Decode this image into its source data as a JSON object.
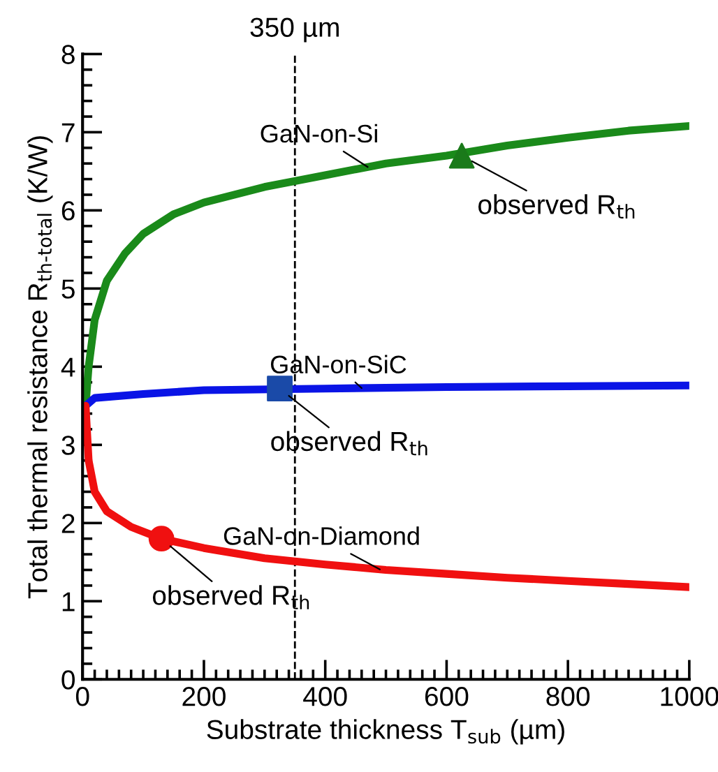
{
  "chart_data": {
    "type": "line",
    "xlabel": "Substrate thickness T$_{sub}$ (µm)",
    "ylabel": "Total thermal resistance R$_{th-total}$ (K/W)",
    "xlim": [
      0,
      1000
    ],
    "xticks": [
      0,
      200,
      400,
      600,
      800,
      1000
    ],
    "ylim": [
      0,
      8
    ],
    "yticks": [
      0,
      1,
      2,
      3,
      4,
      5,
      6,
      7,
      8
    ],
    "grid": false,
    "legend": false,
    "marker": "none",
    "line_style": "solid",
    "series": [
      {
        "name": "GaN-on-Si",
        "color": "#1a8a1a",
        "x": [
          5,
          10,
          20,
          40,
          70,
          100,
          150,
          200,
          300,
          400,
          500,
          600,
          700,
          800,
          900,
          1000
        ],
        "values": [
          3.5,
          4.0,
          4.6,
          5.1,
          5.45,
          5.7,
          5.95,
          6.1,
          6.3,
          6.45,
          6.6,
          6.7,
          6.83,
          6.93,
          7.02,
          7.08
        ]
      },
      {
        "name": "GaN-on-SiC",
        "color": "#0a14e6",
        "x": [
          5,
          20,
          100,
          200,
          400,
          600,
          800,
          1000
        ],
        "values": [
          3.5,
          3.6,
          3.65,
          3.7,
          3.72,
          3.74,
          3.75,
          3.76
        ]
      },
      {
        "name": "GaN-on-Diamond",
        "color": "#f01010",
        "x": [
          5,
          10,
          20,
          40,
          80,
          130,
          200,
          300,
          400,
          500,
          600,
          700,
          800,
          900,
          1000
        ],
        "values": [
          3.5,
          2.8,
          2.4,
          2.15,
          1.95,
          1.8,
          1.68,
          1.55,
          1.47,
          1.4,
          1.35,
          1.3,
          1.26,
          1.22,
          1.18
        ]
      },
      {
        "type": "scatter",
        "marker": "triangle",
        "color": "#1a7a1a",
        "x": [
          625
        ],
        "values": [
          6.7
        ]
      },
      {
        "type": "scatter",
        "marker": "square",
        "color": "#1a4aa8",
        "x": [
          325
        ],
        "values": [
          3.72
        ]
      },
      {
        "type": "scatter",
        "marker": "circle",
        "color": "#f01010",
        "x": [
          130
        ],
        "values": [
          1.8
        ]
      }
    ],
    "ref_lines": [
      {
        "axis": "x",
        "value": 350,
        "label": "350 µm",
        "color": "#000000",
        "line_style": "dashed"
      }
    ],
    "annotations": [
      {
        "text": "observed R$_{th}$",
        "x": 625,
        "y": 6.7
      },
      {
        "text": "observed R$_{th}$",
        "x": 325,
        "y": 3.72
      },
      {
        "text": "observed R$_{th}$",
        "x": 130,
        "y": 1.8
      }
    ]
  }
}
